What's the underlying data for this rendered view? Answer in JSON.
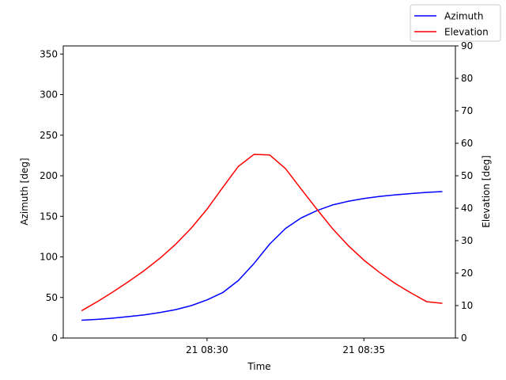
{
  "chart_data": {
    "type": "line",
    "xlabel": "Time",
    "ylabel_left": "Azimuth [deg]",
    "ylabel_right": "Elevation [deg]",
    "x_tick_labels": [
      "21 08:30",
      "21 08:35"
    ],
    "x_tick_values": [
      "08:30:00",
      "08:35:00"
    ],
    "xlim": [
      "08:25:25",
      "08:37:55"
    ],
    "ylim_left": [
      0,
      360
    ],
    "ylim_right": [
      0,
      90
    ],
    "yticks_left": [
      0,
      50,
      100,
      150,
      200,
      250,
      300,
      350
    ],
    "yticks_right": [
      0,
      10,
      20,
      30,
      40,
      50,
      60,
      70,
      80,
      90
    ],
    "legend_position": "top-right",
    "x": [
      "08:26:00",
      "08:26:30",
      "08:27:00",
      "08:27:30",
      "08:28:00",
      "08:28:30",
      "08:29:00",
      "08:29:30",
      "08:30:00",
      "08:30:30",
      "08:31:00",
      "08:31:30",
      "08:32:00",
      "08:32:30",
      "08:33:00",
      "08:33:30",
      "08:34:00",
      "08:34:30",
      "08:35:00",
      "08:35:30",
      "08:36:00",
      "08:36:30",
      "08:37:00",
      "08:37:30"
    ],
    "series": [
      {
        "name": "Azimuth",
        "axis": "left",
        "color": "#0000ff",
        "values": [
          22,
          23,
          24.5,
          26.5,
          28.5,
          31.5,
          35,
          40,
          47,
          56,
          71,
          92,
          116,
          135,
          148,
          157,
          164,
          168.5,
          172,
          174.5,
          176.5,
          178,
          179.5,
          180.5
        ]
      },
      {
        "name": "Elevation",
        "axis": "right",
        "color": "#ff0000",
        "values": [
          8.4,
          11.2,
          14.2,
          17.4,
          20.8,
          24.6,
          28.9,
          33.9,
          39.7,
          46.4,
          52.9,
          56.6,
          56.4,
          52.2,
          45.9,
          39.7,
          33.7,
          28.5,
          24.0,
          20.2,
          16.8,
          13.9,
          11.2,
          10.7
        ]
      }
    ]
  }
}
